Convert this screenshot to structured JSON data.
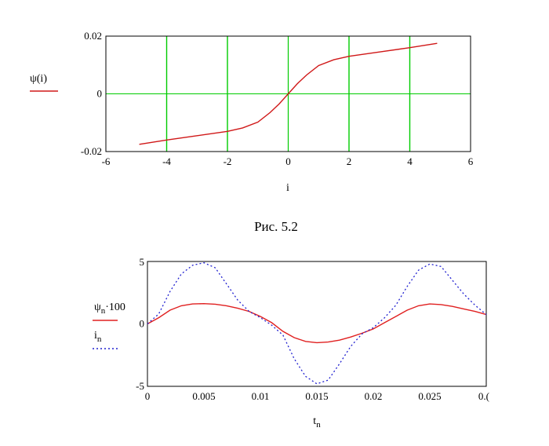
{
  "figure1": {
    "caption": "Рис. 5.2",
    "legend_label": "ψ(i)",
    "chart_data": {
      "type": "line",
      "title": "",
      "xlabel": "i",
      "ylabel": "ψ(i)",
      "xlim": [
        -6,
        6
      ],
      "ylim": [
        -0.02,
        0.02
      ],
      "x_ticks": [
        "-6",
        "-4",
        "-2",
        "0",
        "2",
        "4",
        "6"
      ],
      "y_ticks": [
        "0.02",
        "0",
        "-0.02"
      ],
      "grid": true,
      "colors": {
        "series": "#d01818",
        "grid": "#00cc00"
      },
      "series": [
        {
          "name": "ψ(i)",
          "x": [
            -4.9,
            -4,
            -3,
            -2,
            -1.5,
            -1,
            -0.6,
            -0.3,
            0,
            0.3,
            0.6,
            1,
            1.5,
            2,
            3,
            4,
            4.9
          ],
          "y": [
            -0.0175,
            -0.016,
            -0.0145,
            -0.013,
            -0.0118,
            -0.0098,
            -0.0065,
            -0.0035,
            0,
            0.0035,
            0.0065,
            0.0098,
            0.0118,
            0.013,
            0.0145,
            0.016,
            0.0175
          ]
        }
      ]
    }
  },
  "figure2": {
    "legend": [
      {
        "label": "ψ_n·100",
        "base": "ψ",
        "sub": "n",
        "suffix": "·100",
        "color": "#e02020",
        "style": "solid"
      },
      {
        "label": "i_n",
        "base": "i",
        "sub": "n",
        "suffix": "",
        "color": "#2020d0",
        "style": "dotted"
      }
    ],
    "chart_data": {
      "type": "line",
      "title": "",
      "xlabel": "t_n",
      "xlabel_base": "t",
      "xlabel_sub": "n",
      "xlim": [
        0,
        0.03
      ],
      "ylim": [
        -5,
        5
      ],
      "x_ticks": [
        "0",
        "0.005",
        "0.01",
        "0.015",
        "0.02",
        "0.025",
        "0.("
      ],
      "y_ticks": [
        "5",
        "0",
        "-5"
      ],
      "grid": false,
      "series": [
        {
          "name": "ψ_n·100",
          "x": [
            0,
            0.001,
            0.002,
            0.003,
            0.004,
            0.005,
            0.006,
            0.007,
            0.008,
            0.009,
            0.01,
            0.011,
            0.012,
            0.013,
            0.014,
            0.015,
            0.016,
            0.017,
            0.018,
            0.019,
            0.02,
            0.021,
            0.022,
            0.023,
            0.024,
            0.025,
            0.026,
            0.027,
            0.028,
            0.029,
            0.03
          ],
          "y": [
            0,
            0.5,
            1.1,
            1.45,
            1.6,
            1.62,
            1.58,
            1.45,
            1.25,
            1.0,
            0.6,
            0.1,
            -0.6,
            -1.1,
            -1.4,
            -1.5,
            -1.45,
            -1.3,
            -1.05,
            -0.75,
            -0.4,
            0.1,
            0.6,
            1.1,
            1.45,
            1.6,
            1.55,
            1.4,
            1.2,
            1.0,
            0.75
          ]
        },
        {
          "name": "i_n",
          "x": [
            0,
            0.001,
            0.002,
            0.003,
            0.004,
            0.005,
            0.006,
            0.007,
            0.008,
            0.009,
            0.01,
            0.011,
            0.012,
            0.013,
            0.014,
            0.015,
            0.016,
            0.017,
            0.018,
            0.019,
            0.02,
            0.021,
            0.022,
            0.023,
            0.024,
            0.025,
            0.026,
            0.027,
            0.028,
            0.029,
            0.03
          ],
          "y": [
            0,
            0.8,
            2.6,
            4.0,
            4.7,
            4.9,
            4.5,
            3.2,
            1.9,
            1.0,
            0.5,
            -0.1,
            -0.9,
            -2.8,
            -4.2,
            -4.8,
            -4.5,
            -3.2,
            -1.8,
            -0.8,
            -0.3,
            0.5,
            1.5,
            3.0,
            4.3,
            4.8,
            4.6,
            3.5,
            2.4,
            1.5,
            0.75
          ]
        }
      ]
    }
  }
}
